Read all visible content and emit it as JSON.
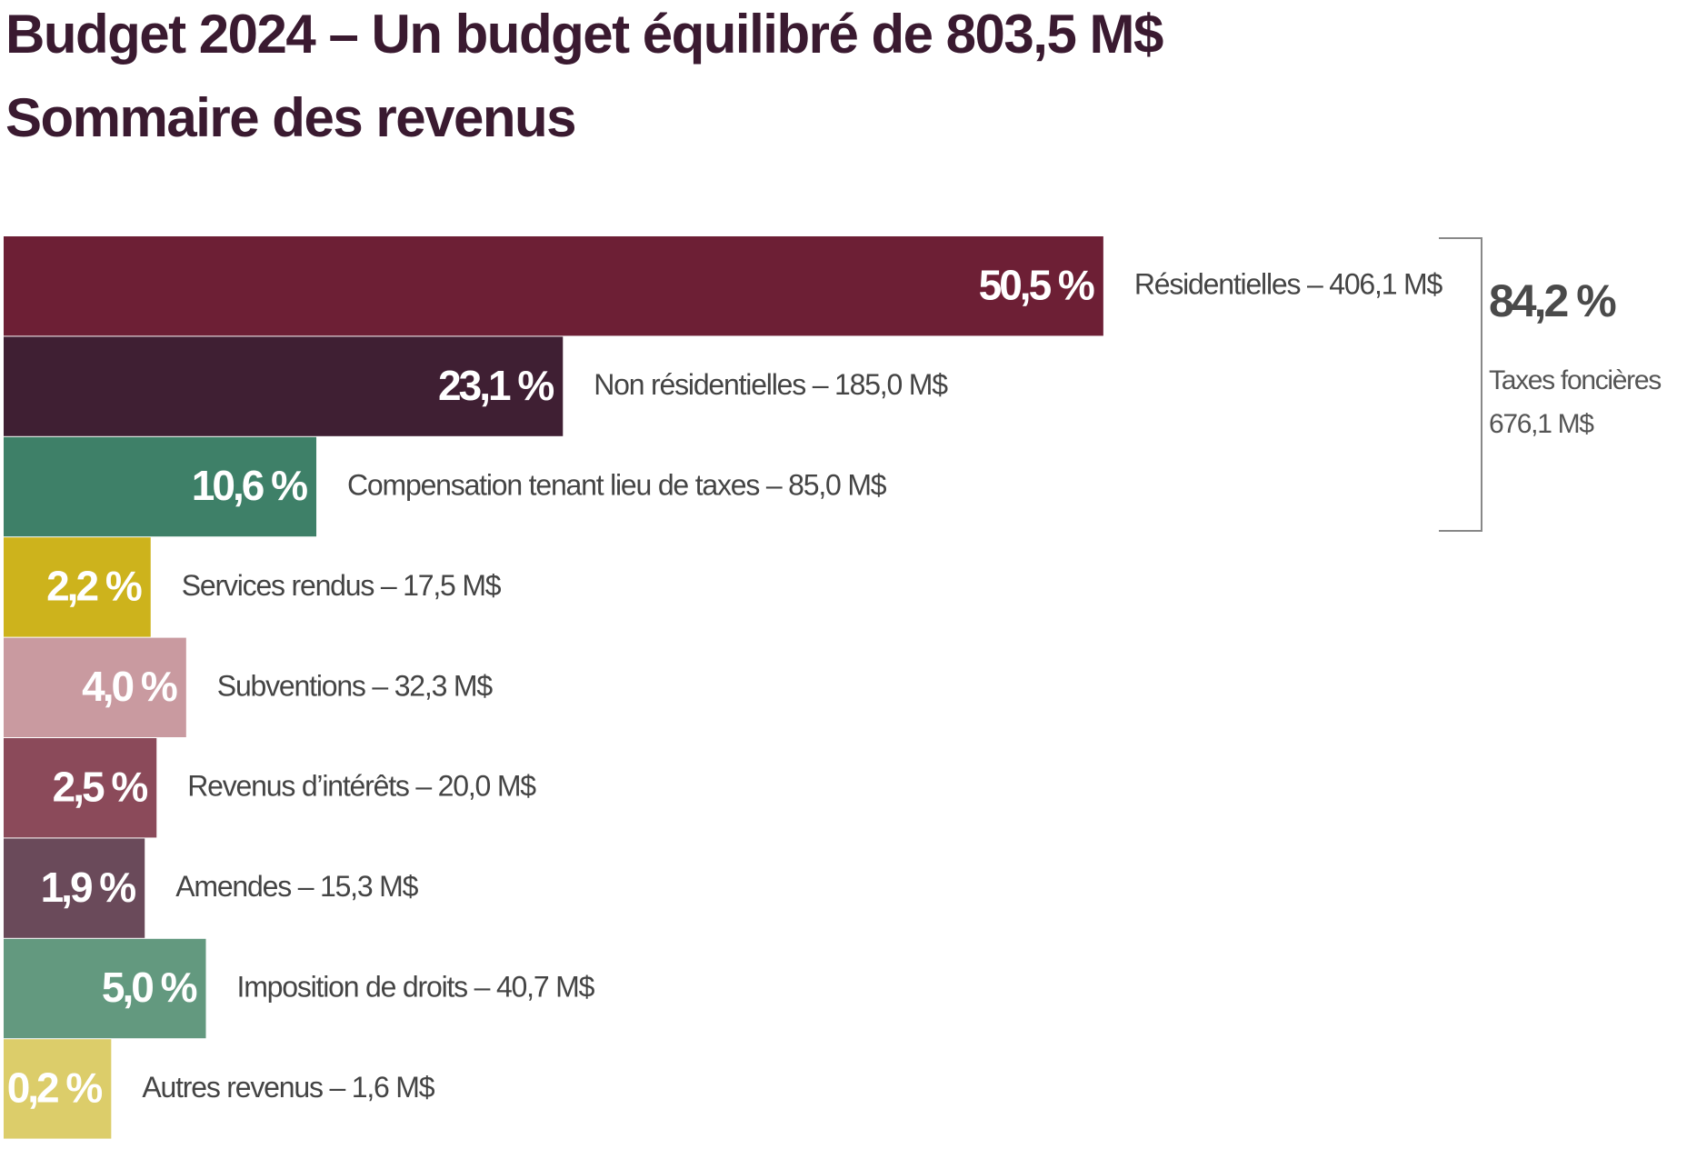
{
  "chart_data": {
    "type": "bar",
    "orientation": "horizontal",
    "title": "Budget 2024 – Un budget équilibré de 803,5 M$",
    "subtitle": "Sommaire des revenus",
    "categories": [
      "Résidentielles – 406,1 M$",
      "Non résidentielles – 185,0 M$",
      "Compensation tenant lieu de taxes – 85,0 M$",
      "Services rendus – 17,5 M$",
      "Subventions – 32,3 M$",
      "Revenus d’intérêts – 20,0 M$",
      "Amendes – 15,3 M$",
      "Imposition de droits – 40,7 M$",
      "Autres revenus – 1,6 M$"
    ],
    "values": [
      50.5,
      23.1,
      10.6,
      2.2,
      4.0,
      2.5,
      1.9,
      5.0,
      0.2
    ],
    "value_labels": [
      "50,5 %",
      "23,1 %",
      "10,6 %",
      "2,2 %",
      "4,0 %",
      "2,5 %",
      "1,9 %",
      "5,0 %",
      "0,2 %"
    ],
    "colors": [
      "#6d1f35",
      "#3f1f33",
      "#3e8068",
      "#cdb31c",
      "#c99aa0",
      "#8b4a5a",
      "#6a4a5a",
      "#63997f",
      "#dccd6a"
    ],
    "annotations": [
      {
        "text": "84,2 %"
      },
      {
        "text": "Taxes foncières"
      },
      {
        "text": "676,1 M$"
      }
    ]
  }
}
